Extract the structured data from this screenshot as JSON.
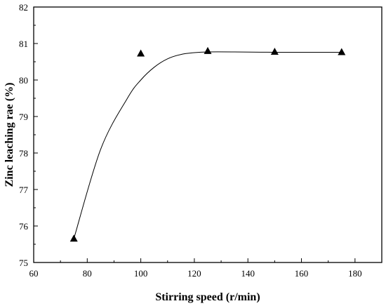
{
  "chart_data": {
    "type": "scatter",
    "title": "",
    "xlabel": "Stirring speed (r/min)",
    "ylabel": "Zinc leaching rae (%)",
    "xlim": [
      60,
      190
    ],
    "ylim": [
      75,
      82
    ],
    "xticks": [
      60,
      80,
      100,
      120,
      140,
      160,
      180
    ],
    "yticks": [
      75,
      76,
      77,
      78,
      79,
      80,
      81,
      82
    ],
    "grid": false,
    "legend": "none",
    "series": [
      {
        "marker": "triangle",
        "x": [
          75,
          100,
          125,
          150,
          175
        ],
        "y": [
          75.65,
          80.72,
          80.79,
          80.77,
          80.76
        ]
      }
    ],
    "fit_curve": {
      "x": [
        75,
        85,
        95,
        100,
        105,
        110,
        115,
        120,
        125,
        135,
        150,
        165,
        175
      ],
      "y": [
        75.65,
        78.1,
        79.5,
        80.0,
        80.35,
        80.58,
        80.7,
        80.75,
        80.77,
        80.77,
        80.76,
        80.76,
        80.76
      ]
    },
    "colors": {
      "marker": "#000000",
      "line": "#000000",
      "axis": "#000000"
    }
  }
}
